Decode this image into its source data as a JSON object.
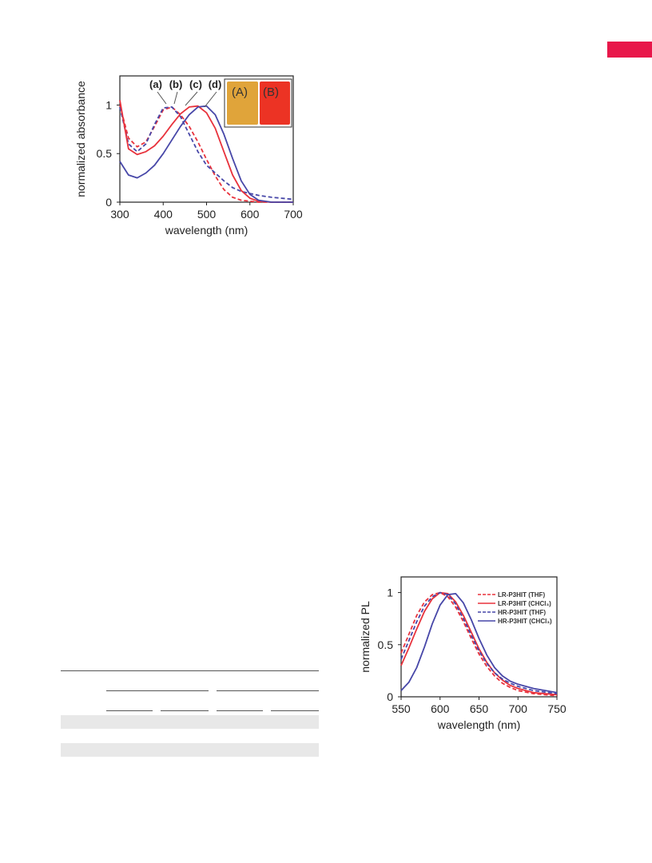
{
  "colors": {
    "accent": "#e8174a",
    "red": "#e8323c",
    "blue": "#4747a8",
    "band": "#e8e8e8"
  },
  "chart_data": [
    {
      "type": "line",
      "xlabel": "wavelength (nm)",
      "ylabel": "normalized absorbance",
      "xlim": [
        300,
        700
      ],
      "ylim": [
        0,
        1.3
      ],
      "xticks": [
        "300",
        "400",
        "500",
        "600",
        "700"
      ],
      "yticks": [
        "0",
        "0.5",
        "1"
      ],
      "annotations": [
        "(a)",
        "(b)",
        "(c)",
        "(d)"
      ],
      "inset": {
        "labels": [
          "(A)",
          "(B)"
        ],
        "colors": [
          "#e0a43a",
          "#ec3324"
        ]
      },
      "series": [
        {
          "style": "dashed",
          "color": "#e8323c",
          "x": [
            300,
            320,
            340,
            360,
            380,
            400,
            420,
            440,
            460,
            480,
            500,
            520,
            540,
            560,
            580,
            600,
            620,
            650,
            700
          ],
          "y": [
            1.0,
            0.66,
            0.57,
            0.62,
            0.78,
            0.95,
            0.98,
            0.9,
            0.78,
            0.62,
            0.44,
            0.27,
            0.13,
            0.05,
            0.02,
            0.01,
            0.0,
            0.0,
            0.0
          ]
        },
        {
          "style": "dashed",
          "color": "#4747a8",
          "x": [
            300,
            320,
            340,
            360,
            380,
            400,
            420,
            440,
            460,
            480,
            500,
            520,
            540,
            560,
            580,
            600,
            620,
            650,
            700
          ],
          "y": [
            0.98,
            0.6,
            0.52,
            0.6,
            0.8,
            0.97,
            0.98,
            0.88,
            0.7,
            0.52,
            0.38,
            0.3,
            0.22,
            0.15,
            0.11,
            0.09,
            0.07,
            0.05,
            0.03
          ]
        },
        {
          "style": "solid",
          "color": "#e8323c",
          "x": [
            300,
            320,
            340,
            360,
            380,
            400,
            420,
            440,
            460,
            480,
            500,
            520,
            540,
            560,
            580,
            600,
            620,
            650,
            700
          ],
          "y": [
            1.05,
            0.55,
            0.49,
            0.52,
            0.58,
            0.68,
            0.8,
            0.91,
            0.98,
            0.99,
            0.92,
            0.76,
            0.52,
            0.28,
            0.12,
            0.04,
            0.01,
            0.0,
            0.0
          ]
        },
        {
          "style": "solid",
          "color": "#4747a8",
          "x": [
            300,
            320,
            340,
            360,
            380,
            400,
            420,
            440,
            460,
            480,
            500,
            520,
            540,
            560,
            580,
            600,
            620,
            650,
            700
          ],
          "y": [
            0.42,
            0.28,
            0.25,
            0.3,
            0.38,
            0.5,
            0.64,
            0.78,
            0.9,
            0.98,
            0.99,
            0.9,
            0.7,
            0.45,
            0.22,
            0.08,
            0.02,
            0.0,
            0.0
          ]
        }
      ]
    },
    {
      "type": "line",
      "xlabel": "wavelength (nm)",
      "ylabel": "normalized PL",
      "xlim": [
        550,
        750
      ],
      "ylim": [
        0,
        1.15
      ],
      "xticks": [
        "550",
        "600",
        "650",
        "700",
        "750"
      ],
      "yticks": [
        "0",
        "0.5",
        "1"
      ],
      "series": [
        {
          "name": "LR-P3HIT (THF)",
          "style": "dashed",
          "color": "#e8323c",
          "x": [
            550,
            560,
            570,
            580,
            590,
            600,
            610,
            620,
            630,
            640,
            650,
            660,
            670,
            680,
            690,
            700,
            720,
            750
          ],
          "y": [
            0.42,
            0.6,
            0.78,
            0.91,
            0.98,
            1.0,
            0.96,
            0.86,
            0.72,
            0.56,
            0.41,
            0.29,
            0.2,
            0.13,
            0.09,
            0.06,
            0.03,
            0.01
          ]
        },
        {
          "name": "LR-P3HIT (CHCl₃)",
          "style": "solid",
          "color": "#e8323c",
          "x": [
            550,
            560,
            570,
            580,
            590,
            600,
            610,
            620,
            630,
            640,
            650,
            660,
            670,
            680,
            690,
            700,
            720,
            750
          ],
          "y": [
            0.3,
            0.47,
            0.65,
            0.82,
            0.94,
            1.0,
            0.99,
            0.91,
            0.78,
            0.62,
            0.46,
            0.33,
            0.23,
            0.16,
            0.11,
            0.08,
            0.04,
            0.02
          ]
        },
        {
          "name": "HR-P3HIT (THF)",
          "style": "dashed",
          "color": "#4747a8",
          "x": [
            550,
            560,
            570,
            580,
            590,
            600,
            610,
            620,
            630,
            640,
            650,
            660,
            670,
            680,
            690,
            700,
            720,
            750
          ],
          "y": [
            0.36,
            0.54,
            0.72,
            0.87,
            0.96,
            1.0,
            0.98,
            0.89,
            0.75,
            0.59,
            0.44,
            0.32,
            0.23,
            0.17,
            0.13,
            0.1,
            0.06,
            0.03
          ]
        },
        {
          "name": "HR-P3HIT (CHCl₃)",
          "style": "solid",
          "color": "#4747a8",
          "x": [
            550,
            560,
            570,
            580,
            590,
            600,
            610,
            620,
            630,
            640,
            650,
            660,
            670,
            680,
            690,
            700,
            720,
            750
          ],
          "y": [
            0.06,
            0.14,
            0.28,
            0.48,
            0.7,
            0.88,
            0.98,
            0.99,
            0.9,
            0.74,
            0.56,
            0.4,
            0.28,
            0.2,
            0.15,
            0.12,
            0.08,
            0.04
          ]
        }
      ]
    }
  ]
}
